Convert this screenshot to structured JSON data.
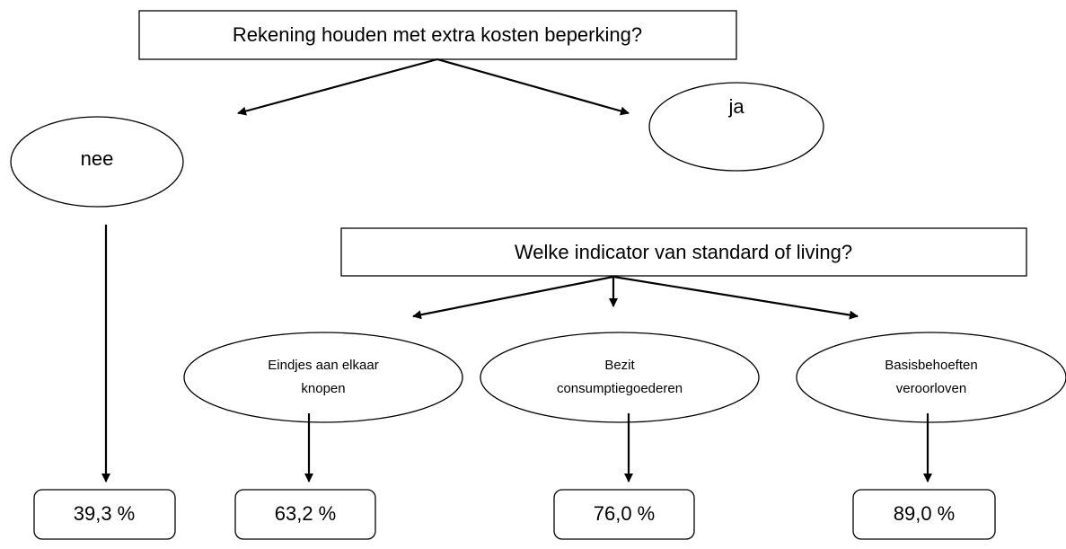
{
  "questions": [
    {
      "label": "Rekening houden met extra kosten beperking?"
    },
    {
      "label": "Welke indicator van standard of living?"
    }
  ],
  "answers": [
    {
      "label": "nee"
    },
    {
      "label": "ja"
    }
  ],
  "indicators": [
    {
      "lines": [
        "Eindjes aan elkaar",
        "knopen"
      ]
    },
    {
      "lines": [
        "Bezit",
        "consumptiegoederen"
      ]
    },
    {
      "lines": [
        "Basisbehoeften",
        "veroorloven"
      ]
    }
  ],
  "results": [
    {
      "label": "39,3 %"
    },
    {
      "label": "63,2 %"
    },
    {
      "label": "76,0 %"
    },
    {
      "label": "89,0 %"
    }
  ]
}
